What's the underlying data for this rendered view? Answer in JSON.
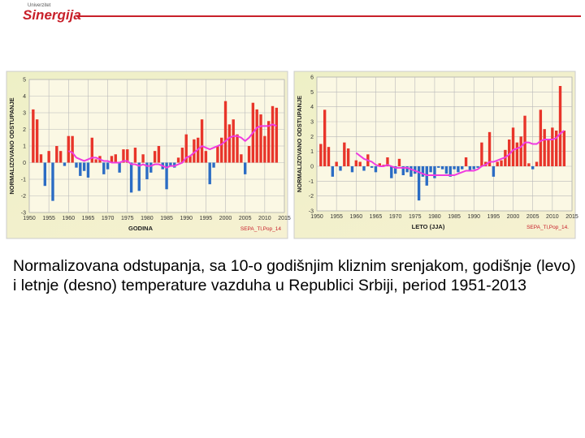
{
  "logo": {
    "small": "Univerzitet",
    "name": "Sinergija"
  },
  "caption": "Normalizovana odstupanja, sa 10-o godišnjim kliznim srenjakom, godišnje (levo) i letnje (desno) temperature vazduha u Republici Srbiji, period 1951-2013",
  "chart_data": [
    {
      "type": "bar",
      "ylabel": "NORMALIZOVANO ODSTUPANJE",
      "xlabel": "GODINA",
      "source": "SEPA_Tl,Pop_14",
      "x": [
        1951,
        1952,
        1953,
        1954,
        1955,
        1956,
        1957,
        1958,
        1959,
        1960,
        1961,
        1962,
        1963,
        1964,
        1965,
        1966,
        1967,
        1968,
        1969,
        1970,
        1971,
        1972,
        1973,
        1974,
        1975,
        1976,
        1977,
        1978,
        1979,
        1980,
        1981,
        1982,
        1983,
        1984,
        1985,
        1986,
        1987,
        1988,
        1989,
        1990,
        1991,
        1992,
        1993,
        1994,
        1995,
        1996,
        1997,
        1998,
        1999,
        2000,
        2001,
        2002,
        2003,
        2004,
        2005,
        2006,
        2007,
        2008,
        2009,
        2010,
        2011,
        2012,
        2013
      ],
      "values": [
        3.2,
        2.6,
        0.5,
        -1.4,
        0.7,
        -2.3,
        1.0,
        0.7,
        -0.2,
        1.6,
        1.6,
        -0.3,
        -0.8,
        -0.5,
        -0.9,
        1.5,
        0.2,
        0.4,
        -0.7,
        -0.4,
        0.4,
        0.5,
        -0.6,
        0.8,
        0.8,
        -1.8,
        0.9,
        -1.7,
        0.5,
        -1.0,
        -0.6,
        0.7,
        1.0,
        -0.4,
        -1.6,
        -0.2,
        -0.3,
        0.3,
        0.9,
        1.7,
        0.4,
        1.4,
        1.5,
        2.6,
        0.7,
        -1.3,
        -0.3,
        1.0,
        1.5,
        3.7,
        2.3,
        2.6,
        1.7,
        0.5,
        -0.7,
        1.0,
        3.6,
        3.2,
        2.9,
        1.6,
        2.5,
        3.4,
        3.3
      ],
      "line_values": [
        null,
        null,
        null,
        null,
        null,
        null,
        null,
        null,
        null,
        0.7,
        0.6,
        0.3,
        0.2,
        0.1,
        0.2,
        0.3,
        0.3,
        0.2,
        0.1,
        0.1,
        0.0,
        0.0,
        0.0,
        0.1,
        0.1,
        -0.1,
        -0.1,
        -0.2,
        -0.1,
        -0.2,
        -0.2,
        -0.1,
        -0.1,
        -0.2,
        -0.3,
        -0.2,
        -0.2,
        -0.1,
        0.0,
        0.3,
        0.4,
        0.6,
        0.8,
        1.0,
        0.9,
        0.8,
        0.9,
        1.0,
        1.1,
        1.3,
        1.5,
        1.6,
        1.6,
        1.5,
        1.3,
        1.5,
        1.8,
        2.1,
        2.2,
        2.2,
        2.2,
        2.3,
        2.2
      ],
      "positive_color": "#e8352a",
      "negative_color": "#2b6cc4",
      "line_color": "#f03ce0",
      "xlim": [
        1950,
        2015
      ],
      "xticks": [
        1950,
        1955,
        1960,
        1965,
        1970,
        1975,
        1980,
        1985,
        1990,
        1995,
        2000,
        2005,
        2010,
        2015
      ],
      "ylim": [
        -3,
        5
      ],
      "yticks": [
        -3,
        -2,
        -1,
        0,
        1,
        2,
        3,
        4,
        5
      ],
      "grid": true
    },
    {
      "type": "bar",
      "ylabel": "NORMALIZOVANO ODSTUPANJE",
      "xlabel": "LETO (JJA)",
      "source": "SEPA_Tl,Pop_14.",
      "x": [
        1951,
        1952,
        1953,
        1954,
        1955,
        1956,
        1957,
        1958,
        1959,
        1960,
        1961,
        1962,
        1963,
        1964,
        1965,
        1966,
        1967,
        1968,
        1969,
        1970,
        1971,
        1972,
        1973,
        1974,
        1975,
        1976,
        1977,
        1978,
        1979,
        1980,
        1981,
        1982,
        1983,
        1984,
        1985,
        1986,
        1987,
        1988,
        1989,
        1990,
        1991,
        1992,
        1993,
        1994,
        1995,
        1996,
        1997,
        1998,
        1999,
        2000,
        2001,
        2002,
        2003,
        2004,
        2005,
        2006,
        2007,
        2008,
        2009,
        2010,
        2011,
        2012,
        2013
      ],
      "values": [
        1.5,
        3.8,
        1.3,
        -0.7,
        0.3,
        -0.3,
        1.6,
        1.2,
        -0.4,
        0.4,
        0.3,
        -0.3,
        0.8,
        -0.1,
        -0.4,
        0.2,
        0.1,
        0.6,
        -0.8,
        -0.5,
        0.5,
        -0.6,
        -0.4,
        -0.7,
        -0.5,
        -2.3,
        -0.7,
        -1.3,
        -0.4,
        -0.8,
        -0.1,
        -0.2,
        -0.5,
        -0.7,
        -0.2,
        -0.4,
        -0.2,
        0.6,
        -0.3,
        -0.2,
        -0.1,
        1.6,
        0.3,
        2.3,
        -0.7,
        0.3,
        0.4,
        1.1,
        1.8,
        2.6,
        1.6,
        2.0,
        3.4,
        0.2,
        -0.2,
        0.3,
        3.8,
        2.5,
        1.8,
        2.6,
        2.4,
        5.4,
        2.4
      ],
      "line_values": [
        null,
        null,
        null,
        null,
        null,
        null,
        null,
        null,
        null,
        0.9,
        0.7,
        0.5,
        0.4,
        0.3,
        0.1,
        0.0,
        0.0,
        0.1,
        0.0,
        -0.1,
        -0.1,
        -0.1,
        -0.1,
        -0.2,
        -0.3,
        -0.4,
        -0.5,
        -0.6,
        -0.6,
        -0.6,
        -0.6,
        -0.6,
        -0.6,
        -0.6,
        -0.6,
        -0.5,
        -0.4,
        -0.3,
        -0.3,
        -0.3,
        -0.2,
        0.0,
        0.1,
        0.3,
        0.3,
        0.4,
        0.5,
        0.6,
        0.8,
        1.1,
        1.2,
        1.3,
        1.6,
        1.6,
        1.5,
        1.5,
        1.7,
        1.8,
        1.8,
        1.8,
        1.9,
        2.2,
        2.4
      ],
      "positive_color": "#e8352a",
      "negative_color": "#2b6cc4",
      "line_color": "#f03ce0",
      "xlim": [
        1950,
        2015
      ],
      "xticks": [
        1950,
        1955,
        1960,
        1965,
        1970,
        1975,
        1980,
        1985,
        1990,
        1995,
        2000,
        2005,
        2010,
        2015
      ],
      "ylim": [
        -3,
        6
      ],
      "yticks": [
        -3,
        -2,
        -1,
        0,
        1,
        2,
        3,
        4,
        5,
        6
      ],
      "grid": true
    }
  ]
}
